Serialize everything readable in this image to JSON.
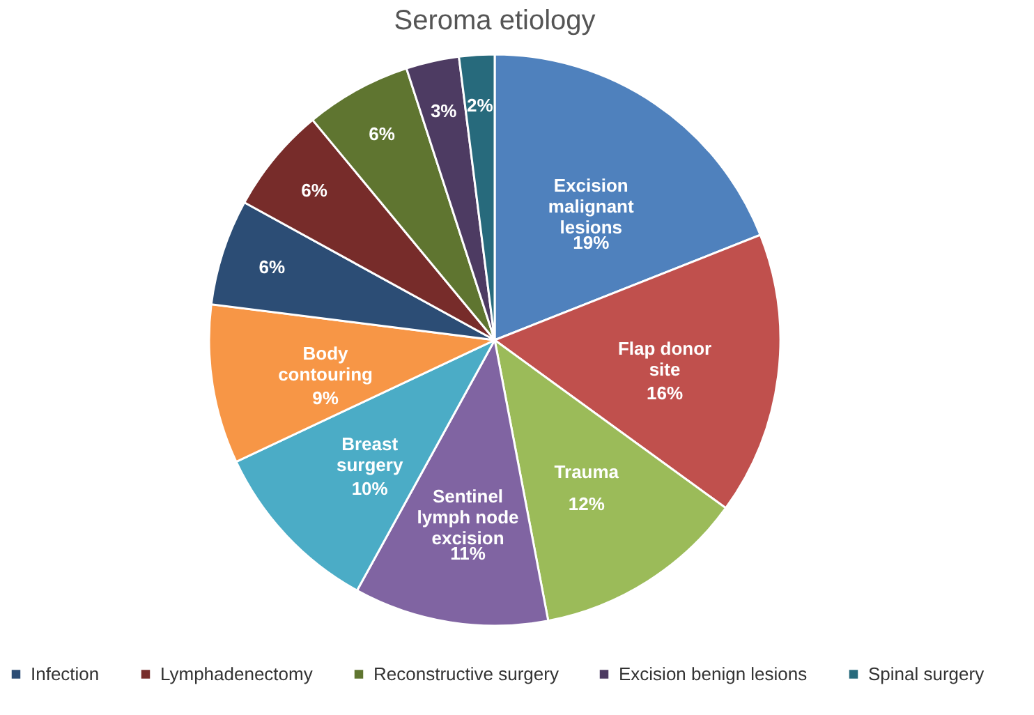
{
  "chart_data": {
    "type": "pie",
    "title": "Seroma etiology",
    "categories": [
      "Excision malignant lesions",
      "Flap donor site",
      "Trauma",
      "Sentinel lymph node excision",
      "Breast surgery",
      "Body contouring",
      "Infection",
      "Lymphadenectomy",
      "Reconstructive surgery",
      "Excision benign lesions",
      "Spinal surgery"
    ],
    "values": [
      19,
      16,
      12,
      11,
      10,
      9,
      6,
      6,
      6,
      3,
      2
    ],
    "colors": [
      "#4f81bd",
      "#c0504d",
      "#9bbb59",
      "#8064a2",
      "#4bacc6",
      "#f79646",
      "#2c4d75",
      "#772c2a",
      "#5f7530",
      "#4d3b62",
      "#276a7c"
    ],
    "value_labels": [
      "19%",
      "16%",
      "12%",
      "11%",
      "10%",
      "9%",
      "6%",
      "6%",
      "6%",
      "3%",
      "2%"
    ],
    "legend": "bottom"
  }
}
